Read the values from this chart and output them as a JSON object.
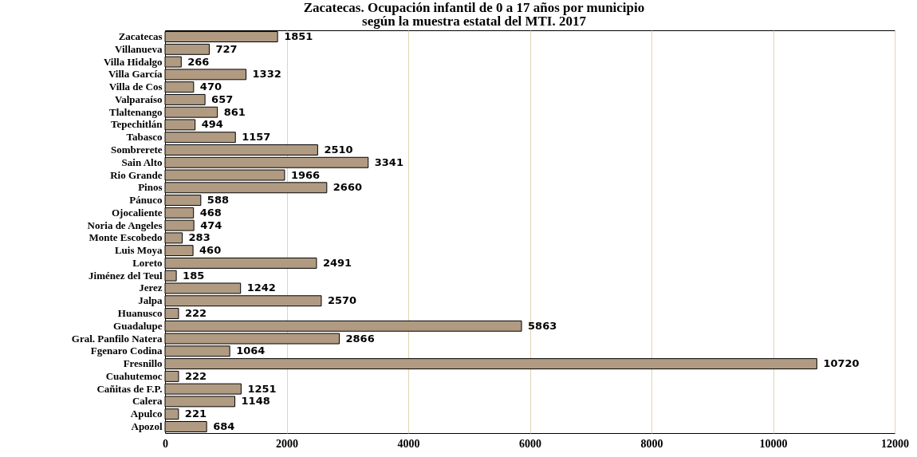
{
  "chart_data": {
    "type": "bar",
    "orientation": "horizontal",
    "title": "Zacatecas. Ocupación infantil de 0 a 17 años por municipio\nsegún la muestra estatal del MTI. 2017",
    "categories": [
      "Zacatecas",
      "Villanueva",
      "Villa Hidalgo",
      "Villa García",
      "Villa de Cos",
      "Valparaíso",
      "Tlaltenango",
      "Tepechitlán",
      "Tabasco",
      "Sombrerete",
      "Sain Alto",
      "Rio Grande",
      "Pinos",
      "Pánuco",
      "Ojocaliente",
      "Noria de Angeles",
      "Monte Escobedo",
      "Luis Moya",
      "Loreto",
      "Jiménez del Teul",
      "Jerez",
      "Jalpa",
      "Huanusco",
      "Guadalupe",
      "Gral. Panfilo Natera",
      "Fgenaro Codina",
      "Fresnillo",
      "Cuahutemoc",
      "Cañitas de F.P.",
      "Calera",
      "Apulco",
      "Apozol"
    ],
    "values": [
      1851,
      727,
      266,
      1332,
      470,
      657,
      861,
      494,
      1157,
      2510,
      3341,
      1966,
      2660,
      588,
      468,
      474,
      283,
      460,
      2491,
      185,
      1242,
      2570,
      222,
      5863,
      2866,
      1064,
      10720,
      222,
      1251,
      1148,
      221,
      684
    ],
    "color": "#b09b82",
    "data_labels": true,
    "xlim": [
      0,
      12000
    ],
    "xticks": [
      0,
      2000,
      4000,
      6000,
      8000,
      10000,
      12000
    ],
    "grid": "x"
  }
}
